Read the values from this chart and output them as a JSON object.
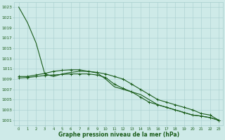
{
  "title": "Graphe pression niveau de la mer (hPa)",
  "xlim": [
    -0.5,
    23.5
  ],
  "ylim": [
    1000,
    1024
  ],
  "yticks": [
    1001,
    1003,
    1005,
    1007,
    1009,
    1011,
    1013,
    1015,
    1017,
    1019,
    1021,
    1023
  ],
  "xticks": [
    0,
    1,
    2,
    3,
    4,
    5,
    6,
    7,
    8,
    9,
    10,
    11,
    12,
    13,
    14,
    15,
    16,
    17,
    18,
    19,
    20,
    21,
    22,
    23
  ],
  "bg_color": "#ceeae8",
  "grid_color": "#a8cece",
  "line_color": "#1a5c1a",
  "series1": [
    1023,
    1020,
    1016,
    1010,
    1009.5,
    1010,
    1010.3,
    1010.5,
    1010.5,
    1010.2,
    1009,
    1007.5,
    1007,
    1006.5,
    1006,
    1005,
    1004,
    1003.5,
    1003,
    1002.5,
    1002,
    1001.8,
    1001.5,
    1001
  ],
  "series2": [
    1009.5,
    1009.5,
    1009.8,
    1010.1,
    1010.5,
    1010.7,
    1010.8,
    1010.8,
    1010.5,
    1010.3,
    1010.0,
    1009.5,
    1009.0,
    1008.0,
    1007.0,
    1006.0,
    1005.0,
    1004.5,
    1004.0,
    1003.5,
    1003.0,
    1002.3,
    1002.0,
    1001.0
  ],
  "series3": [
    1009.2,
    1009.3,
    1009.5,
    1009.7,
    1009.8,
    1009.9,
    1010.0,
    1010.0,
    1010.0,
    1009.8,
    1009.3,
    1008.0,
    1007.2,
    1006.5,
    1005.5,
    1004.5,
    1004.0,
    1003.5,
    1003.0,
    1002.5,
    1002.0,
    1001.8,
    1001.5,
    1001.0
  ]
}
